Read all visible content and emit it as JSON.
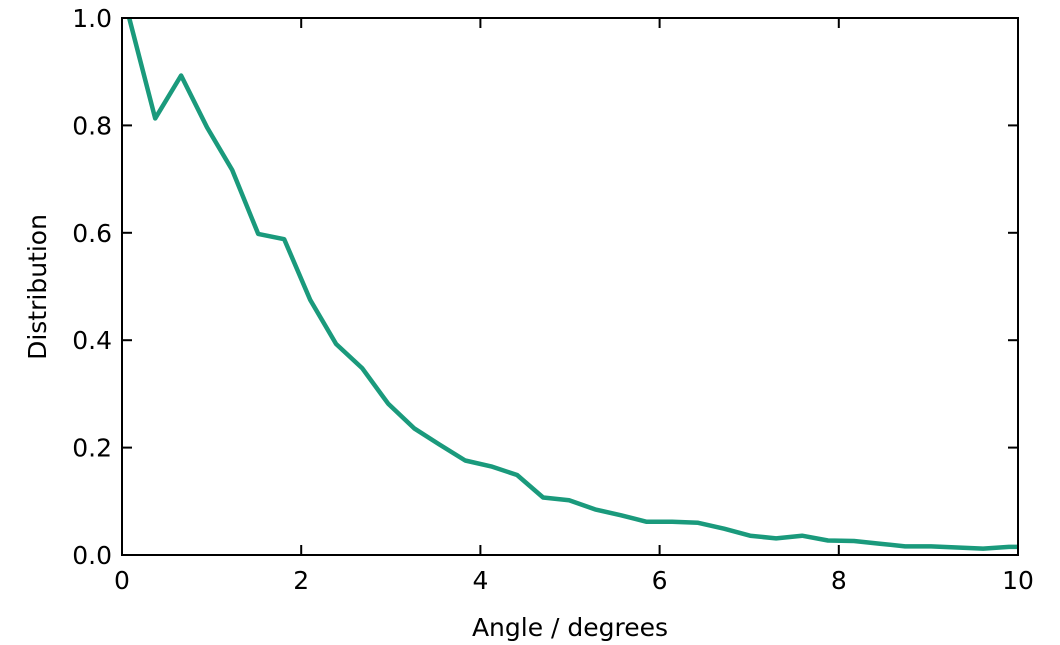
{
  "chart_data": {
    "type": "line",
    "title": "",
    "xlabel": "Angle / degrees",
    "ylabel": "Distribution",
    "xlim": [
      0,
      10
    ],
    "ylim": [
      0,
      1.0
    ],
    "xticks": [
      0,
      2,
      4,
      6,
      8,
      10
    ],
    "yticks": [
      0.0,
      0.2,
      0.4,
      0.6,
      0.8,
      1.0
    ],
    "xtick_labels": [
      "0",
      "2",
      "4",
      "6",
      "8",
      "10"
    ],
    "ytick_labels": [
      "0.0",
      "0.2",
      "0.4",
      "0.6",
      "0.8",
      "1.0"
    ],
    "grid": false,
    "series": [
      {
        "color": "#1a9a7c",
        "x": [
          0.08,
          0.37,
          0.66,
          0.95,
          1.23,
          1.52,
          1.81,
          2.1,
          2.39,
          2.68,
          2.97,
          3.26,
          3.54,
          3.83,
          4.12,
          4.41,
          4.7,
          4.99,
          5.28,
          5.57,
          5.85,
          6.14,
          6.43,
          6.72,
          7.01,
          7.3,
          7.59,
          7.88,
          8.17,
          8.46,
          8.74,
          9.03,
          9.32,
          9.61,
          9.9,
          10.0
        ],
        "y": [
          1.0,
          0.813,
          0.893,
          0.796,
          0.717,
          0.598,
          0.588,
          0.475,
          0.393,
          0.348,
          0.282,
          0.236,
          0.206,
          0.176,
          0.165,
          0.149,
          0.107,
          0.102,
          0.085,
          0.074,
          0.062,
          0.062,
          0.06,
          0.049,
          0.036,
          0.031,
          0.036,
          0.027,
          0.026,
          0.021,
          0.016,
          0.016,
          0.014,
          0.012,
          0.015,
          0.015
        ]
      }
    ]
  }
}
